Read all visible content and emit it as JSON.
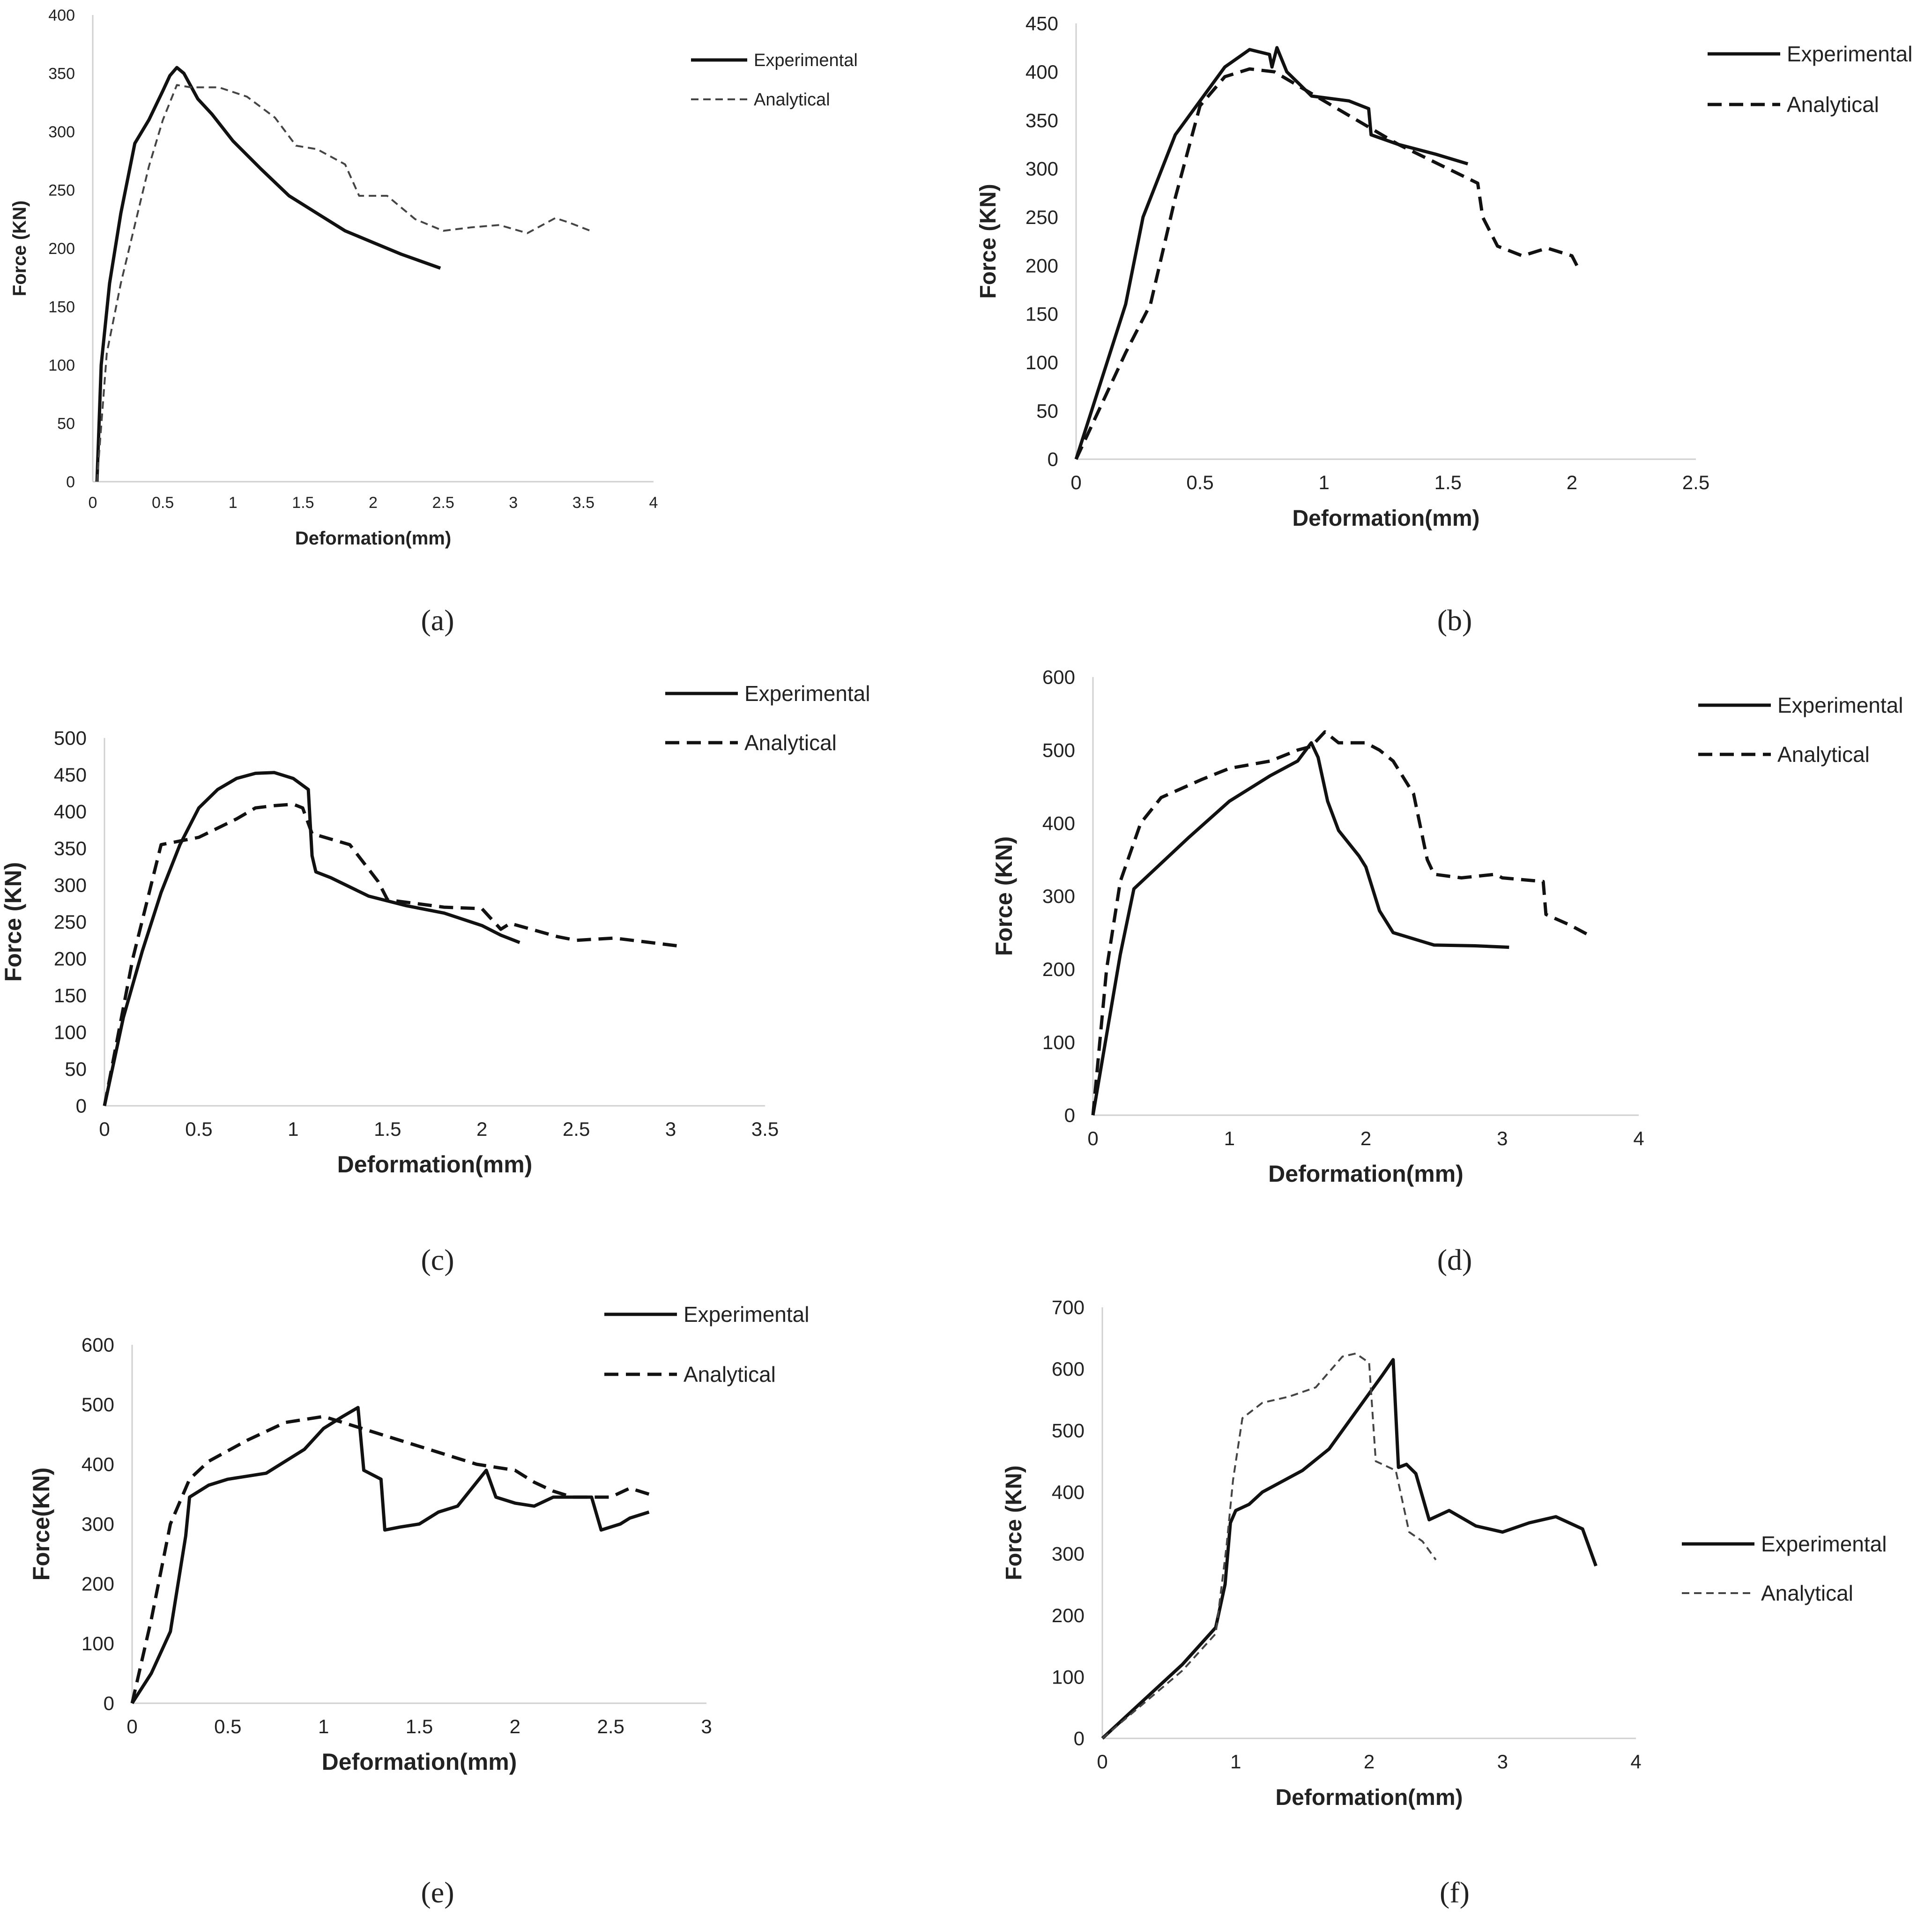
{
  "figure": {
    "panels": [
      {
        "caption": "(a)"
      },
      {
        "caption": "(b)"
      },
      {
        "caption": "(c)"
      },
      {
        "caption": "(d)"
      },
      {
        "caption": "(e)"
      },
      {
        "caption": "(f)"
      }
    ]
  },
  "chart_data": [
    {
      "type": "line",
      "xlabel": "Deformation(mm)",
      "ylabel": "Force (KN)",
      "xlim": [
        0,
        4
      ],
      "ylim": [
        0,
        400
      ],
      "xticks": [
        "0",
        "0.5",
        "1",
        "1.5",
        "2",
        "2.5",
        "3",
        "3.5",
        "4"
      ],
      "yticks": [
        "0",
        "50",
        "100",
        "150",
        "200",
        "250",
        "300",
        "350",
        "400"
      ],
      "legend_position": "top-right",
      "series": [
        {
          "name": "Experimental",
          "style": "solid",
          "x": [
            0.03,
            0.06,
            0.12,
            0.2,
            0.3,
            0.4,
            0.5,
            0.55,
            0.6,
            0.65,
            0.75,
            0.85,
            1.0,
            1.2,
            1.4,
            1.6,
            1.8,
            2.0,
            2.2,
            2.48
          ],
          "y": [
            0,
            100,
            170,
            230,
            290,
            310,
            335,
            348,
            355,
            350,
            328,
            315,
            292,
            268,
            245,
            230,
            215,
            205,
            195,
            183
          ]
        },
        {
          "name": "Analytical",
          "style": "dashed",
          "x": [
            0.03,
            0.1,
            0.2,
            0.3,
            0.4,
            0.5,
            0.6,
            0.7,
            0.9,
            1.1,
            1.3,
            1.45,
            1.6,
            1.8,
            1.9,
            2.1,
            2.3,
            2.5,
            2.7,
            2.9,
            3.1,
            3.3,
            3.4,
            3.55
          ],
          "y": [
            0,
            110,
            170,
            220,
            270,
            310,
            340,
            338,
            338,
            330,
            312,
            288,
            285,
            272,
            245,
            245,
            225,
            215,
            218,
            220,
            213,
            226,
            222,
            215
          ]
        }
      ]
    },
    {
      "type": "line",
      "xlabel": "Deformation(mm)",
      "ylabel": "Force (KN)",
      "xlim": [
        0,
        2.5
      ],
      "ylim": [
        0,
        450
      ],
      "xticks": [
        "0",
        "0.5",
        "1",
        "1.5",
        "2",
        "2.5"
      ],
      "yticks": [
        "0",
        "50",
        "100",
        "150",
        "200",
        "250",
        "300",
        "350",
        "400",
        "450"
      ],
      "legend_position": "top-right",
      "series": [
        {
          "name": "Experimental",
          "style": "solid",
          "x": [
            0,
            0.1,
            0.2,
            0.27,
            0.4,
            0.5,
            0.6,
            0.7,
            0.78,
            0.79,
            0.81,
            0.85,
            0.95,
            1.1,
            1.18,
            1.19,
            1.3,
            1.45,
            1.58
          ],
          "y": [
            0,
            80,
            160,
            250,
            335,
            370,
            405,
            423,
            418,
            405,
            425,
            400,
            375,
            370,
            362,
            335,
            325,
            315,
            305
          ]
        },
        {
          "name": "Analytical",
          "style": "dashed",
          "x": [
            0,
            0.1,
            0.2,
            0.3,
            0.4,
            0.5,
            0.6,
            0.7,
            0.8,
            0.9,
            1.1,
            1.3,
            1.5,
            1.62,
            1.64,
            1.7,
            1.8,
            1.9,
            2.0,
            2.02
          ],
          "y": [
            0,
            55,
            110,
            160,
            270,
            365,
            395,
            403,
            400,
            385,
            355,
            325,
            300,
            285,
            250,
            220,
            210,
            218,
            210,
            200
          ]
        }
      ]
    },
    {
      "type": "line",
      "xlabel": "Deformation(mm)",
      "ylabel": "Force (KN)",
      "xlim": [
        0,
        3.5
      ],
      "ylim": [
        0,
        500
      ],
      "xticks": [
        "0",
        "0.5",
        "1",
        "1.5",
        "2",
        "2.5",
        "3",
        "3.5"
      ],
      "yticks": [
        "0",
        "50",
        "100",
        "150",
        "200",
        "250",
        "300",
        "350",
        "400",
        "450",
        "500"
      ],
      "legend_position": "top-right",
      "series": [
        {
          "name": "Experimental",
          "style": "solid",
          "x": [
            0,
            0.1,
            0.2,
            0.3,
            0.4,
            0.5,
            0.6,
            0.7,
            0.8,
            0.9,
            1.0,
            1.08,
            1.1,
            1.12,
            1.2,
            1.4,
            1.6,
            1.8,
            2.0,
            2.1,
            2.2
          ],
          "y": [
            0,
            120,
            210,
            290,
            355,
            405,
            430,
            445,
            452,
            453,
            445,
            430,
            340,
            318,
            310,
            285,
            272,
            262,
            245,
            232,
            222
          ]
        },
        {
          "name": "Analytical",
          "style": "dashed",
          "x": [
            0,
            0.15,
            0.3,
            0.5,
            0.7,
            0.8,
            0.9,
            1.0,
            1.05,
            1.1,
            1.3,
            1.45,
            1.5,
            1.8,
            2.0,
            2.1,
            2.15,
            2.4,
            2.5,
            2.7,
            3.05
          ],
          "y": [
            0,
            200,
            355,
            365,
            390,
            405,
            408,
            410,
            405,
            370,
            355,
            305,
            280,
            270,
            268,
            240,
            248,
            230,
            225,
            228,
            217
          ]
        }
      ]
    },
    {
      "type": "line",
      "xlabel": "Deformation(mm)",
      "ylabel": "Force (KN)",
      "xlim": [
        0,
        4
      ],
      "ylim": [
        0,
        600
      ],
      "xticks": [
        "0",
        "1",
        "2",
        "3",
        "4"
      ],
      "yticks": [
        "0",
        "100",
        "200",
        "300",
        "400",
        "500",
        "600"
      ],
      "legend_position": "top-right",
      "series": [
        {
          "name": "Experimental",
          "style": "solid",
          "x": [
            0,
            0.1,
            0.2,
            0.3,
            0.5,
            0.7,
            1.0,
            1.3,
            1.5,
            1.6,
            1.65,
            1.72,
            1.8,
            1.95,
            2.0,
            2.1,
            2.2,
            2.5,
            2.8,
            3.05
          ],
          "y": [
            0,
            110,
            220,
            310,
            345,
            380,
            430,
            465,
            485,
            510,
            490,
            430,
            390,
            355,
            340,
            280,
            250,
            233,
            232,
            230
          ]
        },
        {
          "name": "Analytical",
          "style": "dashed",
          "x": [
            0,
            0.1,
            0.2,
            0.35,
            0.5,
            0.8,
            1.0,
            1.3,
            1.5,
            1.6,
            1.7,
            1.8,
            2.0,
            2.1,
            2.2,
            2.35,
            2.45,
            2.5,
            2.7,
            2.95,
            3.0,
            3.3,
            3.32,
            3.5,
            3.65
          ],
          "y": [
            0,
            200,
            320,
            400,
            435,
            460,
            475,
            485,
            500,
            505,
            525,
            510,
            510,
            500,
            485,
            440,
            350,
            330,
            325,
            330,
            325,
            320,
            275,
            260,
            245
          ]
        }
      ]
    },
    {
      "type": "line",
      "xlabel": "Deformation(mm)",
      "ylabel": "Force(KN)",
      "xlim": [
        0,
        3
      ],
      "ylim": [
        0,
        600
      ],
      "xticks": [
        "0",
        "0.5",
        "1",
        "1.5",
        "2",
        "2.5",
        "3"
      ],
      "yticks": [
        "0",
        "100",
        "200",
        "300",
        "400",
        "500",
        "600"
      ],
      "legend_position": "top-right",
      "series": [
        {
          "name": "Experimental",
          "style": "solid",
          "x": [
            0,
            0.1,
            0.2,
            0.28,
            0.3,
            0.4,
            0.5,
            0.7,
            0.9,
            1.0,
            1.1,
            1.18,
            1.21,
            1.3,
            1.32,
            1.4,
            1.5,
            1.6,
            1.7,
            1.85,
            1.9,
            2.0,
            2.1,
            2.2,
            2.3,
            2.4,
            2.45,
            2.55,
            2.6,
            2.7
          ],
          "y": [
            0,
            50,
            120,
            280,
            345,
            365,
            375,
            385,
            425,
            460,
            480,
            495,
            390,
            375,
            290,
            295,
            300,
            320,
            330,
            390,
            345,
            335,
            330,
            345,
            345,
            345,
            290,
            300,
            310,
            320
          ]
        },
        {
          "name": "Analytical",
          "style": "dashed",
          "x": [
            0,
            0.1,
            0.2,
            0.3,
            0.4,
            0.6,
            0.8,
            1.0,
            1.2,
            1.4,
            1.6,
            1.8,
            1.9,
            2.0,
            2.1,
            2.2,
            2.3,
            2.5,
            2.6,
            2.7
          ],
          "y": [
            0,
            140,
            300,
            375,
            405,
            440,
            470,
            480,
            460,
            440,
            420,
            400,
            395,
            390,
            370,
            355,
            345,
            345,
            360,
            350
          ]
        }
      ]
    },
    {
      "type": "line",
      "xlabel": "Deformation(mm)",
      "ylabel": "Force (KN)",
      "xlim": [
        0,
        4
      ],
      "ylim": [
        0,
        700
      ],
      "xticks": [
        "0",
        "1",
        "2",
        "3",
        "4"
      ],
      "yticks": [
        "0",
        "100",
        "200",
        "300",
        "400",
        "500",
        "600",
        "700"
      ],
      "legend_position": "right",
      "series": [
        {
          "name": "Experimental",
          "style": "solid",
          "x": [
            0,
            0.3,
            0.6,
            0.85,
            0.92,
            0.96,
            1.0,
            1.1,
            1.2,
            1.5,
            1.7,
            1.9,
            2.1,
            2.18,
            2.22,
            2.28,
            2.35,
            2.45,
            2.6,
            2.8,
            3.0,
            3.2,
            3.4,
            3.6,
            3.7
          ],
          "y": [
            0,
            60,
            120,
            180,
            250,
            350,
            370,
            380,
            400,
            435,
            470,
            530,
            590,
            615,
            440,
            445,
            430,
            355,
            370,
            345,
            335,
            350,
            360,
            340,
            280
          ]
        },
        {
          "name": "Analytical",
          "style": "dashed",
          "x": [
            0,
            0.3,
            0.6,
            0.85,
            0.93,
            0.98,
            1.05,
            1.2,
            1.4,
            1.6,
            1.8,
            1.9,
            2.0,
            2.05,
            2.1,
            2.2,
            2.3,
            2.4,
            2.5
          ],
          "y": [
            0,
            55,
            110,
            170,
            310,
            420,
            520,
            545,
            555,
            570,
            620,
            625,
            610,
            450,
            445,
            435,
            335,
            320,
            290
          ]
        }
      ]
    }
  ]
}
